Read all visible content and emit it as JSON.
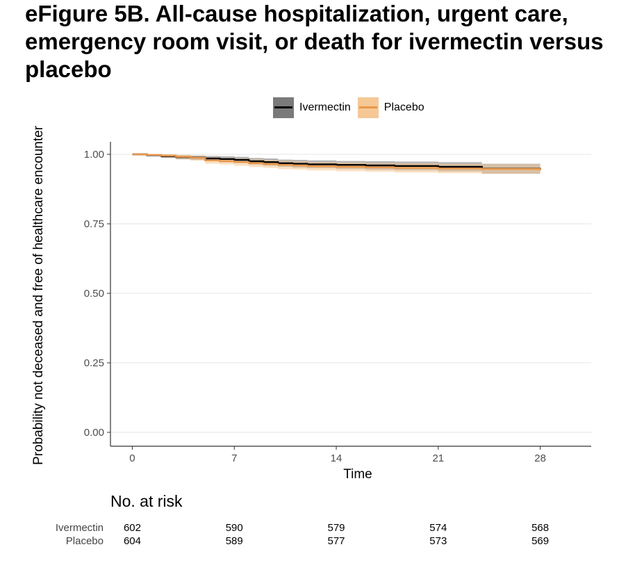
{
  "chart_data": {
    "type": "line",
    "title": "eFigure 5B. All-cause hospitalization, urgent care, emergency room visit, or death for ivermectin versus placebo",
    "xlabel": "Time",
    "ylabel": "Probability not deceased and free of healthcare encounter",
    "xlim": [
      -1.5,
      31.5
    ],
    "ylim": [
      -0.05,
      1.045
    ],
    "x_ticks": [
      "0",
      "7",
      "14",
      "21",
      "28"
    ],
    "y_ticks": [
      "0.00",
      "0.25",
      "0.50",
      "0.75",
      "1.00"
    ],
    "grid": "horizontal",
    "legend_position": "top",
    "series": [
      {
        "name": "Ivermectin",
        "color": "#000000",
        "band_color": "#7a7a7a",
        "x": [
          0,
          1,
          2,
          3,
          4,
          5,
          6,
          7,
          8,
          9,
          10,
          11,
          12,
          14,
          16,
          18,
          21,
          24,
          28
        ],
        "y": [
          1.0,
          0.997,
          0.993,
          0.99,
          0.988,
          0.985,
          0.983,
          0.98,
          0.975,
          0.972,
          0.968,
          0.966,
          0.964,
          0.962,
          0.96,
          0.958,
          0.955,
          0.948,
          0.944
        ],
        "lower": [
          1.0,
          0.993,
          0.987,
          0.982,
          0.979,
          0.975,
          0.972,
          0.969,
          0.963,
          0.959,
          0.955,
          0.952,
          0.95,
          0.947,
          0.944,
          0.942,
          0.938,
          0.93,
          0.925
        ],
        "upper": [
          1.0,
          1.0,
          0.999,
          0.997,
          0.996,
          0.994,
          0.993,
          0.991,
          0.987,
          0.985,
          0.981,
          0.98,
          0.978,
          0.976,
          0.975,
          0.974,
          0.972,
          0.966,
          0.963
        ]
      },
      {
        "name": "Placebo",
        "color": "#e8974a",
        "band_color": "#f5c896",
        "x": [
          0,
          1,
          2,
          3,
          4,
          5,
          6,
          7,
          8,
          9,
          10,
          11,
          12,
          14,
          16,
          18,
          21,
          24,
          28
        ],
        "y": [
          1.0,
          0.998,
          0.995,
          0.991,
          0.987,
          0.978,
          0.975,
          0.972,
          0.968,
          0.965,
          0.962,
          0.96,
          0.957,
          0.955,
          0.953,
          0.951,
          0.949,
          0.947,
          0.942
        ],
        "lower": [
          1.0,
          0.994,
          0.989,
          0.983,
          0.978,
          0.966,
          0.963,
          0.959,
          0.954,
          0.951,
          0.947,
          0.945,
          0.942,
          0.939,
          0.937,
          0.934,
          0.932,
          0.93,
          0.924
        ],
        "upper": [
          1.0,
          1.0,
          1.0,
          0.998,
          0.996,
          0.99,
          0.987,
          0.985,
          0.982,
          0.979,
          0.977,
          0.975,
          0.972,
          0.971,
          0.969,
          0.968,
          0.966,
          0.964,
          0.96
        ]
      }
    ],
    "risk_table": {
      "title": "No. at risk",
      "times": [
        0,
        7,
        14,
        21,
        28
      ],
      "rows": [
        {
          "name": "Ivermectin",
          "values": [
            "602",
            "590",
            "579",
            "574",
            "568"
          ]
        },
        {
          "name": "Placebo",
          "values": [
            "604",
            "589",
            "577",
            "573",
            "569"
          ]
        }
      ]
    }
  }
}
